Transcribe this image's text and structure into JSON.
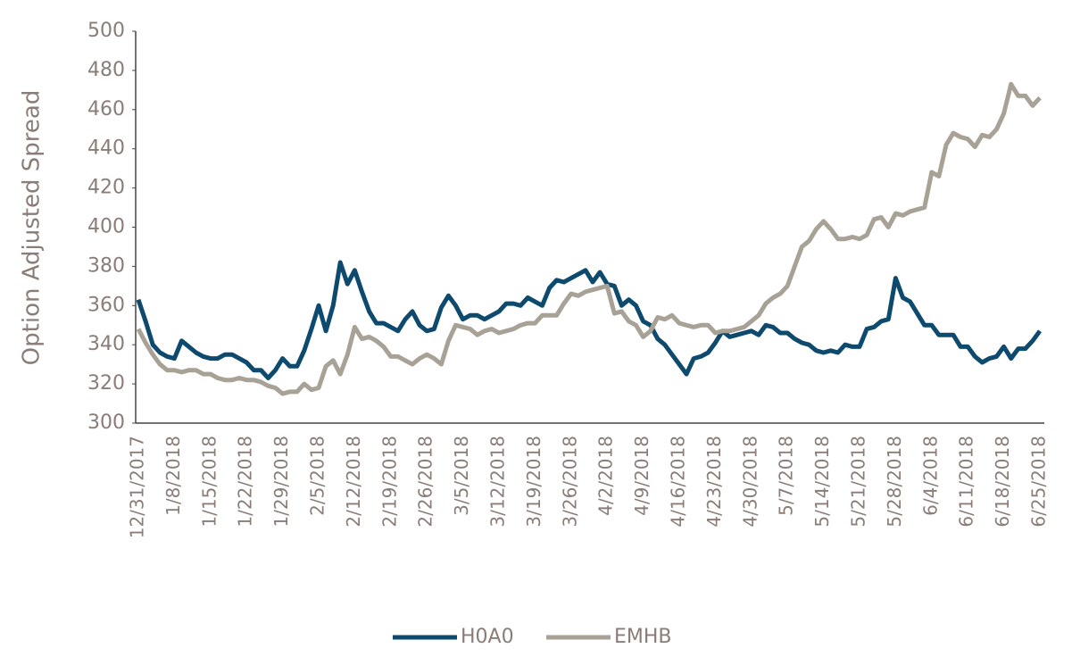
{
  "chart_data": {
    "type": "line",
    "y_label": "Option Adjusted Spread",
    "categories": [
      "12/31/2017",
      null,
      null,
      null,
      null,
      "1/8/2018",
      null,
      null,
      null,
      null,
      "1/15/2018",
      null,
      null,
      null,
      null,
      "1/22/2018",
      null,
      null,
      null,
      null,
      "1/29/2018",
      null,
      null,
      null,
      null,
      "2/5/2018",
      null,
      null,
      null,
      null,
      "2/12/2018",
      null,
      null,
      null,
      null,
      "2/19/2018",
      null,
      null,
      null,
      null,
      "2/26/2018",
      null,
      null,
      null,
      null,
      "3/5/2018",
      null,
      null,
      null,
      null,
      "3/12/2018",
      null,
      null,
      null,
      null,
      "3/19/2018",
      null,
      null,
      null,
      null,
      "3/26/2018",
      null,
      null,
      null,
      null,
      "4/2/2018",
      null,
      null,
      null,
      null,
      "4/9/2018",
      null,
      null,
      null,
      null,
      "4/16/2018",
      null,
      null,
      null,
      null,
      "4/23/2018",
      null,
      null,
      null,
      null,
      "4/30/2018",
      null,
      null,
      null,
      null,
      "5/7/2018",
      null,
      null,
      null,
      null,
      "5/14/2018",
      null,
      null,
      null,
      null,
      "5/21/2018",
      null,
      null,
      null,
      null,
      "5/28/2018",
      null,
      null,
      null,
      null,
      "6/4/2018",
      null,
      null,
      null,
      null,
      "6/11/2018",
      null,
      null,
      null,
      null,
      "6/18/2018",
      null,
      null,
      null,
      null,
      "6/25/2018"
    ],
    "series": [
      {
        "name": "H0A0",
        "color": "#0e4a6e",
        "values": [
          363,
          352,
          340,
          336,
          334,
          333,
          342,
          339,
          336,
          334,
          333,
          333,
          335,
          335,
          333,
          331,
          327,
          327,
          323,
          327,
          333,
          329,
          329,
          337,
          348,
          360,
          347,
          360,
          382,
          371,
          378,
          367,
          357,
          351,
          351,
          349,
          347,
          353,
          357,
          350,
          347,
          348,
          359,
          365,
          360,
          353,
          355,
          355,
          353,
          355,
          357,
          361,
          361,
          360,
          364,
          362,
          360,
          369,
          373,
          372,
          374,
          376,
          378,
          372,
          377,
          371,
          370,
          360,
          363,
          360,
          352,
          350,
          343,
          340,
          335,
          330,
          325,
          333,
          334,
          336,
          341,
          347,
          344,
          345,
          346,
          347,
          345,
          350,
          349,
          346,
          346,
          343,
          341,
          340,
          337,
          336,
          337,
          336,
          340,
          339,
          339,
          348,
          349,
          352,
          353,
          374,
          364,
          362,
          356,
          350,
          350,
          345,
          345,
          345,
          339,
          339,
          334,
          331,
          333,
          334,
          339,
          333,
          338,
          338,
          342,
          347
        ]
      },
      {
        "name": "EMHB",
        "color": "#a8a196",
        "values": [
          348,
          341,
          335,
          330,
          327,
          327,
          326,
          327,
          327,
          325,
          325,
          323,
          322,
          322,
          323,
          322,
          322,
          321,
          319,
          318,
          315,
          316,
          316,
          320,
          317,
          318,
          329,
          332,
          325,
          335,
          349,
          343,
          344,
          342,
          339,
          334,
          334,
          332,
          330,
          333,
          335,
          333,
          330,
          342,
          350,
          349,
          348,
          345,
          347,
          348,
          346,
          347,
          348,
          350,
          351,
          351,
          355,
          355,
          355,
          361,
          366,
          365,
          367,
          368,
          369,
          370,
          356,
          357,
          352,
          350,
          344,
          347,
          354,
          353,
          355,
          351,
          350,
          349,
          350,
          350,
          346,
          347,
          347,
          348,
          349,
          352,
          355,
          361,
          364,
          366,
          370,
          380,
          390,
          393,
          399,
          403,
          399,
          394,
          394,
          395,
          394,
          396,
          404,
          405,
          400,
          407,
          406,
          408,
          409,
          410,
          428,
          426,
          442,
          448,
          446,
          445,
          441,
          447,
          446,
          450,
          458,
          473,
          467,
          467,
          462,
          466
        ]
      }
    ],
    "ylim": [
      300,
      500
    ],
    "yticks": [
      300,
      320,
      340,
      360,
      380,
      400,
      420,
      440,
      460,
      480,
      500
    ],
    "legend": "bottom"
  }
}
